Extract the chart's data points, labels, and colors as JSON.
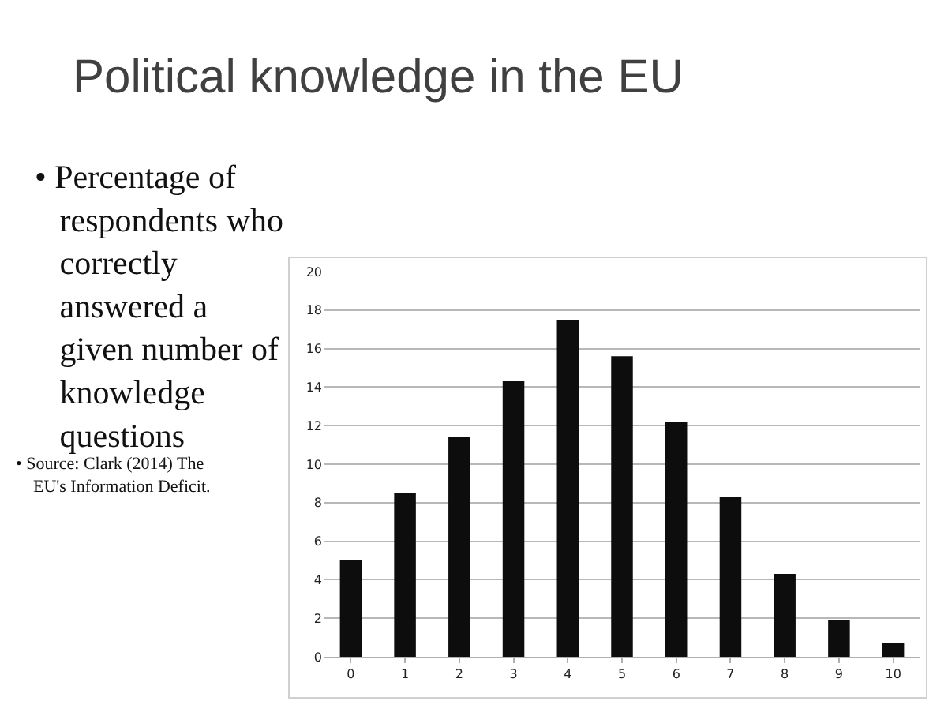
{
  "chart_data": {
    "type": "bar",
    "title": "Political knowledge in the EU",
    "annotations": [
      "• Percentage of respondents who correctly answered a given number of knowledge questions",
      "• Source: Clark (2014) The EU's Information Deficit."
    ],
    "categories": [
      "0",
      "1",
      "2",
      "3",
      "4",
      "5",
      "6",
      "7",
      "8",
      "9",
      "10"
    ],
    "values": [
      5.0,
      8.5,
      11.4,
      14.3,
      17.5,
      15.6,
      12.2,
      8.3,
      4.3,
      1.9,
      0.7
    ],
    "color": "#0d0d0d",
    "ylim": [
      0,
      20
    ],
    "yticks": [
      0,
      2,
      4,
      6,
      8,
      10,
      12,
      14,
      16,
      18,
      20
    ],
    "grid": "y",
    "legend": false
  }
}
